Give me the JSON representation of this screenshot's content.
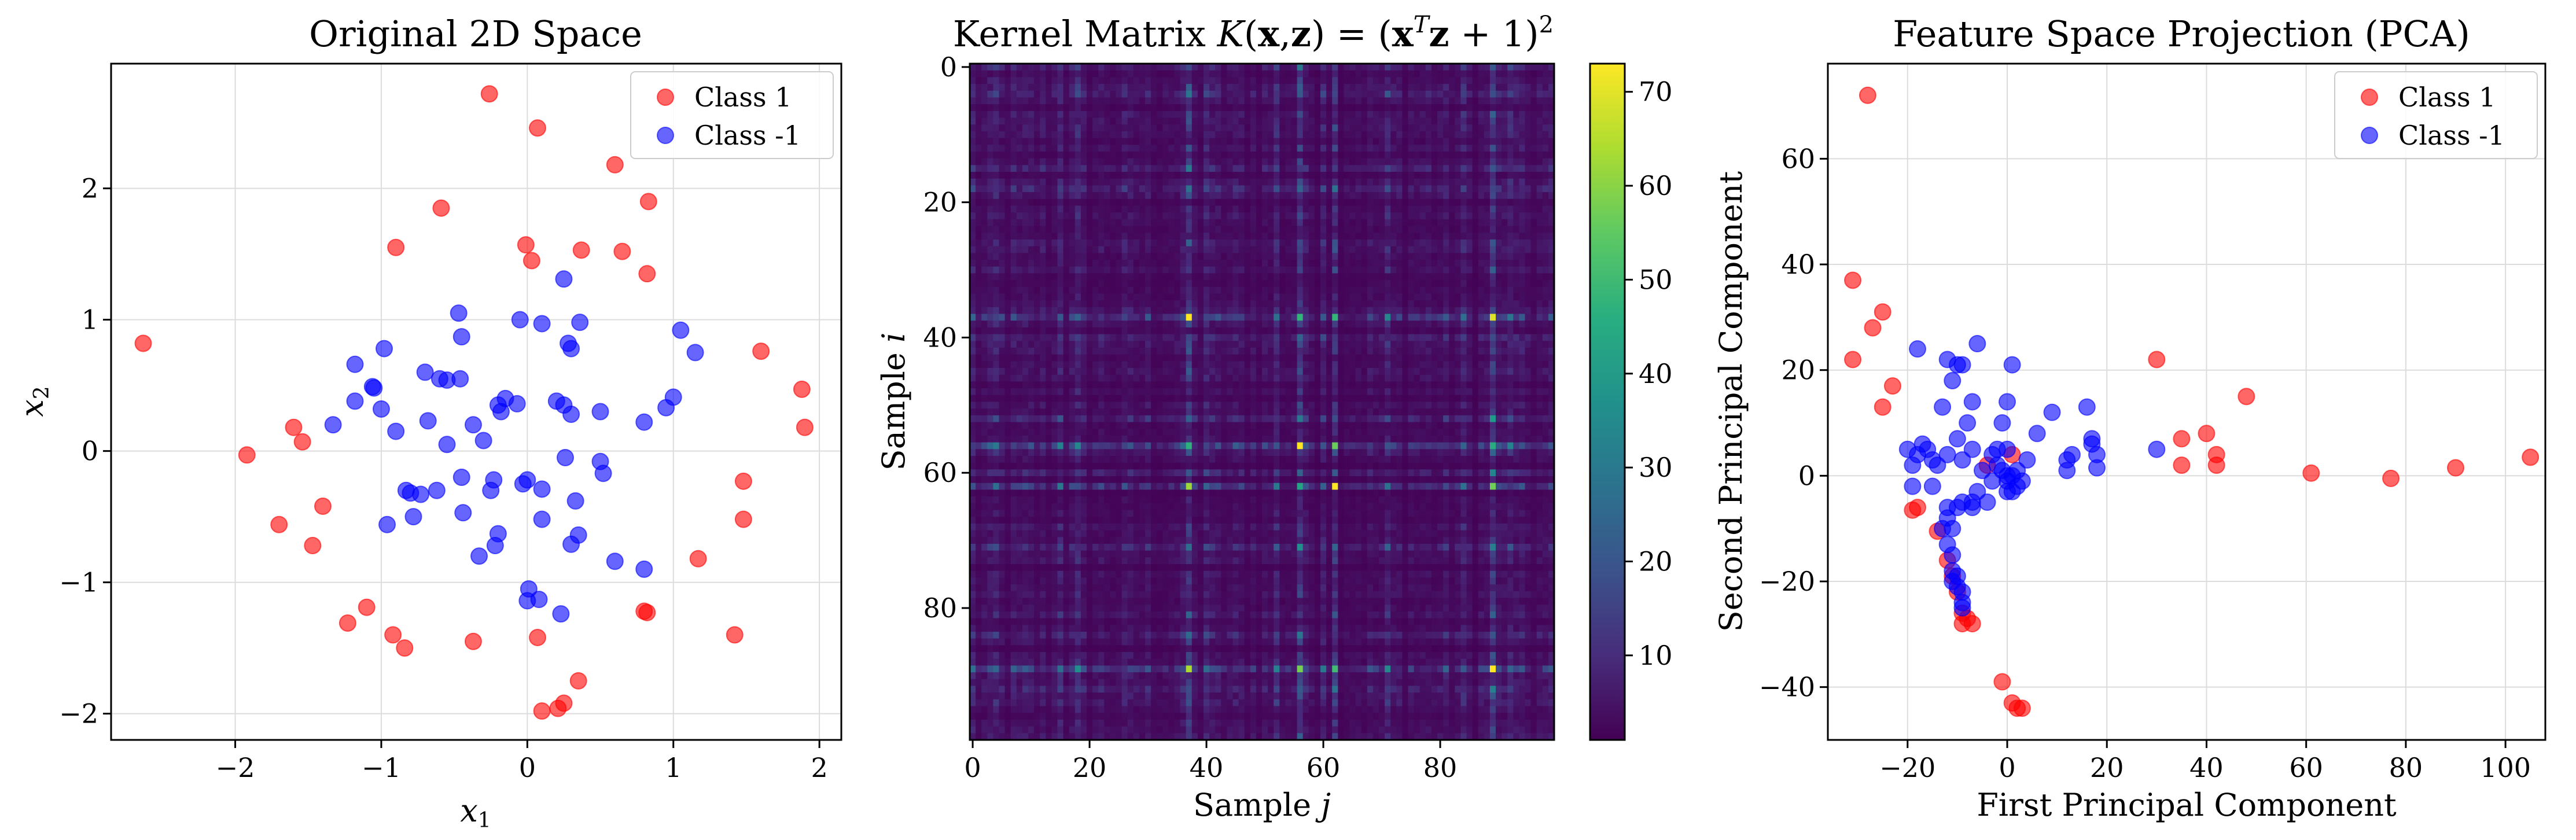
{
  "colors": {
    "class1": "#ff0000",
    "classm1": "#0000ff"
  },
  "chart_data": [
    {
      "type": "scatter",
      "title": "Original 2D Space",
      "xlabel": "x",
      "xlabel_sub": "1",
      "ylabel": "x",
      "ylabel_sub": "2",
      "xlim": [
        -2.85,
        2.15
      ],
      "ylim": [
        -2.2,
        2.95
      ],
      "xticks": [
        -2,
        -1,
        0,
        1,
        2
      ],
      "yticks": [
        -2,
        -1,
        0,
        1,
        2
      ],
      "xtick_labels": [
        "−2",
        "−1",
        "0",
        "1",
        "2"
      ],
      "ytick_labels": [
        "−2",
        "−1",
        "0",
        "1",
        "2"
      ],
      "grid": true,
      "legend_position": "top-right",
      "series": [
        {
          "name": "Class 1",
          "color": "#ff0000",
          "points": [
            [
              -2.63,
              0.82
            ],
            [
              -1.92,
              -0.03
            ],
            [
              -1.6,
              0.18
            ],
            [
              -1.54,
              0.07
            ],
            [
              -1.7,
              -0.56
            ],
            [
              -1.4,
              -0.42
            ],
            [
              -1.47,
              -0.72
            ],
            [
              -0.9,
              1.55
            ],
            [
              -0.59,
              1.85
            ],
            [
              -0.26,
              2.72
            ],
            [
              0.07,
              2.46
            ],
            [
              -0.01,
              1.57
            ],
            [
              0.03,
              1.45
            ],
            [
              0.37,
              1.53
            ],
            [
              0.6,
              2.18
            ],
            [
              0.65,
              1.52
            ],
            [
              0.83,
              1.9
            ],
            [
              0.82,
              1.35
            ],
            [
              1.6,
              0.76
            ],
            [
              1.88,
              0.47
            ],
            [
              1.9,
              0.18
            ],
            [
              1.48,
              -0.23
            ],
            [
              1.48,
              -0.52
            ],
            [
              1.17,
              -0.82
            ],
            [
              1.42,
              -1.4
            ],
            [
              0.8,
              -1.22
            ],
            [
              0.82,
              -1.23
            ],
            [
              0.35,
              -1.75
            ],
            [
              0.25,
              -1.92
            ],
            [
              0.21,
              -1.96
            ],
            [
              0.1,
              -1.98
            ],
            [
              0.07,
              -1.42
            ],
            [
              -0.37,
              -1.45
            ],
            [
              -1.1,
              -1.19
            ],
            [
              -1.23,
              -1.31
            ],
            [
              -0.92,
              -1.4
            ],
            [
              -0.84,
              -1.5
            ]
          ]
        },
        {
          "name": "Class -1",
          "color": "#0000ff",
          "points": [
            [
              -1.33,
              0.2
            ],
            [
              -1.18,
              0.38
            ],
            [
              -1.05,
              0.48
            ],
            [
              -1.06,
              0.49
            ],
            [
              -1.18,
              0.66
            ],
            [
              -1.0,
              0.32
            ],
            [
              -0.98,
              0.78
            ],
            [
              -0.9,
              0.15
            ],
            [
              -0.7,
              0.6
            ],
            [
              -0.6,
              0.55
            ],
            [
              -0.55,
              0.54
            ],
            [
              -0.47,
              1.05
            ],
            [
              -0.45,
              0.87
            ],
            [
              -0.46,
              0.55
            ],
            [
              -0.37,
              0.2
            ],
            [
              -0.3,
              0.08
            ],
            [
              -0.2,
              0.35
            ],
            [
              -0.18,
              0.3
            ],
            [
              -0.15,
              0.4
            ],
            [
              -0.07,
              0.36
            ],
            [
              -0.05,
              1.0
            ],
            [
              0.1,
              0.97
            ],
            [
              0.2,
              0.38
            ],
            [
              0.25,
              0.35
            ],
            [
              0.3,
              0.28
            ],
            [
              0.28,
              0.82
            ],
            [
              0.3,
              0.78
            ],
            [
              0.36,
              0.98
            ],
            [
              0.25,
              1.31
            ],
            [
              0.5,
              0.3
            ],
            [
              0.8,
              0.22
            ],
            [
              0.95,
              0.33
            ],
            [
              1.0,
              0.41
            ],
            [
              1.05,
              0.92
            ],
            [
              1.15,
              0.75
            ],
            [
              -0.68,
              0.23
            ],
            [
              -0.55,
              0.05
            ],
            [
              -0.83,
              -0.3
            ],
            [
              -0.8,
              -0.32
            ],
            [
              -0.73,
              -0.33
            ],
            [
              -0.62,
              -0.3
            ],
            [
              -0.45,
              -0.2
            ],
            [
              -0.44,
              -0.47
            ],
            [
              -0.23,
              -0.22
            ],
            [
              -0.03,
              -0.25
            ],
            [
              0.0,
              -0.22
            ],
            [
              0.1,
              -0.29
            ],
            [
              0.26,
              -0.05
            ],
            [
              0.33,
              -0.38
            ],
            [
              0.5,
              -0.08
            ],
            [
              0.52,
              -0.17
            ],
            [
              0.35,
              -0.64
            ],
            [
              0.3,
              -0.71
            ],
            [
              -0.25,
              -0.3
            ],
            [
              -0.2,
              -0.63
            ],
            [
              -0.33,
              -0.8
            ],
            [
              -0.78,
              -0.5
            ],
            [
              -0.96,
              -0.56
            ],
            [
              0.1,
              -0.52
            ],
            [
              0.01,
              -1.05
            ],
            [
              0.0,
              -1.14
            ],
            [
              0.08,
              -1.13
            ],
            [
              0.23,
              -1.24
            ],
            [
              0.6,
              -0.84
            ],
            [
              0.8,
              -0.9
            ],
            [
              -0.22,
              -0.72
            ]
          ]
        }
      ]
    },
    {
      "type": "heatmap",
      "title": "Kernel Matrix ",
      "xlabel": "Sample ",
      "xlabel_var": "j",
      "ylabel": "Sample ",
      "ylabel_var": "i",
      "n": 100,
      "xticks": [
        0,
        20,
        40,
        60,
        80
      ],
      "yticks": [
        0,
        20,
        40,
        60,
        80
      ],
      "xtick_labels": [
        "0",
        "20",
        "40",
        "60",
        "80"
      ],
      "ytick_labels": [
        "0",
        "20",
        "40",
        "60",
        "80"
      ],
      "colorbar_range": [
        1,
        73
      ],
      "colorbar_ticks": [
        10,
        20,
        30,
        40,
        50,
        60,
        70
      ],
      "colorbar_tick_labels": [
        "10",
        "20",
        "30",
        "40",
        "50",
        "60",
        "70"
      ],
      "colormap": "viridis",
      "hot_indices": [
        37,
        56,
        62,
        89
      ]
    },
    {
      "type": "scatter",
      "title": "Feature Space Projection (PCA)",
      "xlabel": "First Principal Component",
      "ylabel": "Second Principal Component",
      "xlim": [
        -36,
        108
      ],
      "ylim": [
        -50,
        78
      ],
      "xticks": [
        -20,
        0,
        20,
        40,
        60,
        80,
        100
      ],
      "yticks": [
        -40,
        -20,
        0,
        20,
        40,
        60
      ],
      "xtick_labels": [
        "−20",
        "0",
        "20",
        "40",
        "60",
        "80",
        "100"
      ],
      "ytick_labels": [
        "−40",
        "−20",
        "0",
        "20",
        "40",
        "60"
      ],
      "grid": true,
      "legend_position": "top-right",
      "series": [
        {
          "name": "Class 1",
          "color": "#ff0000",
          "points": [
            [
              -28,
              72
            ],
            [
              -31,
              37
            ],
            [
              -27,
              28
            ],
            [
              -25,
              31
            ],
            [
              -25,
              13
            ],
            [
              -23,
              17
            ],
            [
              -31,
              22
            ],
            [
              -19,
              -6.5
            ],
            [
              -18,
              -6
            ],
            [
              -14,
              -10.5
            ],
            [
              -12,
              -16
            ],
            [
              -11,
              -19
            ],
            [
              -10,
              -22
            ],
            [
              -9,
              -26
            ],
            [
              -8,
              -27
            ],
            [
              -9,
              -28
            ],
            [
              -7,
              -28
            ],
            [
              -1,
              -39
            ],
            [
              1,
              -43
            ],
            [
              2,
              -44
            ],
            [
              3,
              -44
            ],
            [
              1,
              4
            ],
            [
              -4,
              2
            ],
            [
              30,
              22
            ],
            [
              35,
              2
            ],
            [
              35,
              7
            ],
            [
              40,
              8
            ],
            [
              42,
              4
            ],
            [
              42,
              2
            ],
            [
              48,
              15
            ],
            [
              61,
              0.5
            ],
            [
              77,
              -0.5
            ],
            [
              90,
              1.5
            ],
            [
              105,
              3.5
            ]
          ]
        },
        {
          "name": "Class -1",
          "color": "#0000ff",
          "points": [
            [
              -18,
              24
            ],
            [
              -17,
              6
            ],
            [
              -18,
              4
            ],
            [
              -19,
              2
            ],
            [
              -20,
              5
            ],
            [
              -16,
              5
            ],
            [
              -15,
              3
            ],
            [
              -14,
              2
            ],
            [
              -19,
              -2
            ],
            [
              -15,
              -2
            ],
            [
              -12,
              22
            ],
            [
              -11,
              18
            ],
            [
              -10,
              21
            ],
            [
              -9,
              21
            ],
            [
              -6,
              25
            ],
            [
              -8,
              10
            ],
            [
              -7,
              14
            ],
            [
              0,
              14
            ],
            [
              1,
              21
            ],
            [
              -13,
              13
            ],
            [
              -10,
              7
            ],
            [
              -12,
              4
            ],
            [
              -9,
              3
            ],
            [
              -7,
              5
            ],
            [
              -5,
              1
            ],
            [
              -3,
              4
            ],
            [
              -2,
              5
            ],
            [
              0,
              5
            ],
            [
              -1,
              10
            ],
            [
              0,
              0
            ],
            [
              1,
              0
            ],
            [
              2,
              1
            ],
            [
              4,
              3
            ],
            [
              3,
              -1
            ],
            [
              0,
              -3
            ],
            [
              -4,
              -5
            ],
            [
              -7,
              -5
            ],
            [
              -9,
              -5
            ],
            [
              -10,
              -6
            ],
            [
              -12,
              -6
            ],
            [
              -12,
              -8
            ],
            [
              -11,
              -10
            ],
            [
              -13,
              -10
            ],
            [
              -12,
              -13
            ],
            [
              -11,
              -15
            ],
            [
              -11,
              -18
            ],
            [
              -10,
              -19
            ],
            [
              -11,
              -20
            ],
            [
              -10,
              -21
            ],
            [
              -9,
              -22
            ],
            [
              -9,
              -24
            ],
            [
              -9,
              -25
            ],
            [
              -7,
              -6
            ],
            [
              -6,
              -3
            ],
            [
              1,
              -3
            ],
            [
              2,
              -2
            ],
            [
              -1,
              1
            ],
            [
              -2,
              2
            ],
            [
              6,
              8
            ],
            [
              9,
              12
            ],
            [
              12,
              1
            ],
            [
              12,
              3
            ],
            [
              13,
              4
            ],
            [
              16,
              13
            ],
            [
              17,
              7
            ],
            [
              17,
              6
            ],
            [
              18,
              4
            ],
            [
              18,
              1.5
            ],
            [
              30,
              5
            ],
            [
              0,
              -1
            ],
            [
              -3,
              -1
            ]
          ]
        }
      ]
    }
  ]
}
